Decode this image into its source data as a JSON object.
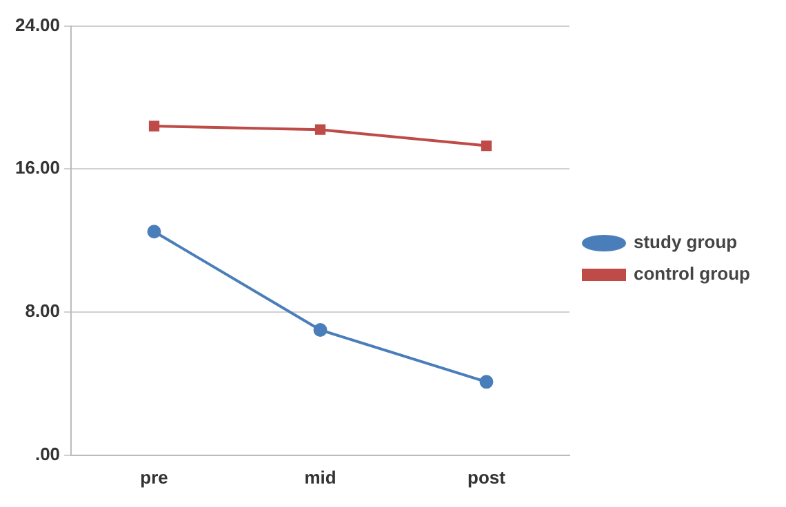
{
  "chart_data": {
    "type": "line",
    "categories": [
      "pre",
      "mid",
      "post"
    ],
    "series": [
      {
        "name": "study group",
        "color": "#4a7ebb",
        "marker": "circle",
        "values": [
          12.5,
          7.0,
          4.1
        ]
      },
      {
        "name": "control group",
        "color": "#be4b48",
        "marker": "square",
        "values": [
          18.4,
          18.2,
          17.3
        ]
      }
    ],
    "ylim": [
      0,
      24
    ],
    "yticks": [
      {
        "value": 0,
        "label": ".00"
      },
      {
        "value": 8,
        "label": "8.00"
      },
      {
        "value": 16,
        "label": "16.00"
      },
      {
        "value": 24,
        "label": "24.00"
      }
    ],
    "grid": "y",
    "legend": "right",
    "line_style": "solid"
  }
}
